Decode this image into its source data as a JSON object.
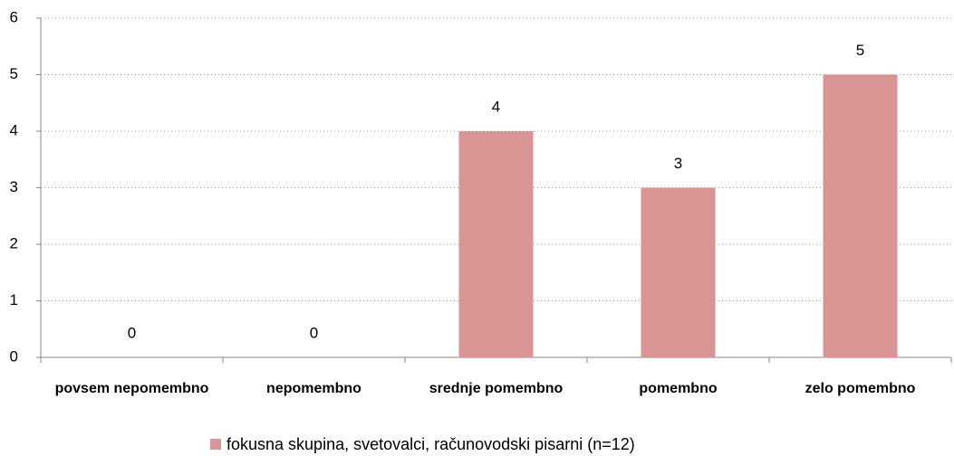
{
  "chart_data": {
    "type": "bar",
    "categories": [
      "povsem nepomembno",
      "nepomembno",
      "srednje pomembno",
      "pomembno",
      "zelo pomembno"
    ],
    "series": [
      {
        "name": "fokusna skupina, svetovalci, računovodski pisarni (n=12)",
        "color": "#d99594",
        "values": [
          0,
          0,
          4,
          3,
          5
        ]
      }
    ],
    "ylim": [
      0,
      6
    ],
    "yticks": [
      0,
      1,
      2,
      3,
      4,
      5,
      6
    ],
    "grid": true,
    "legend": "bottom"
  }
}
